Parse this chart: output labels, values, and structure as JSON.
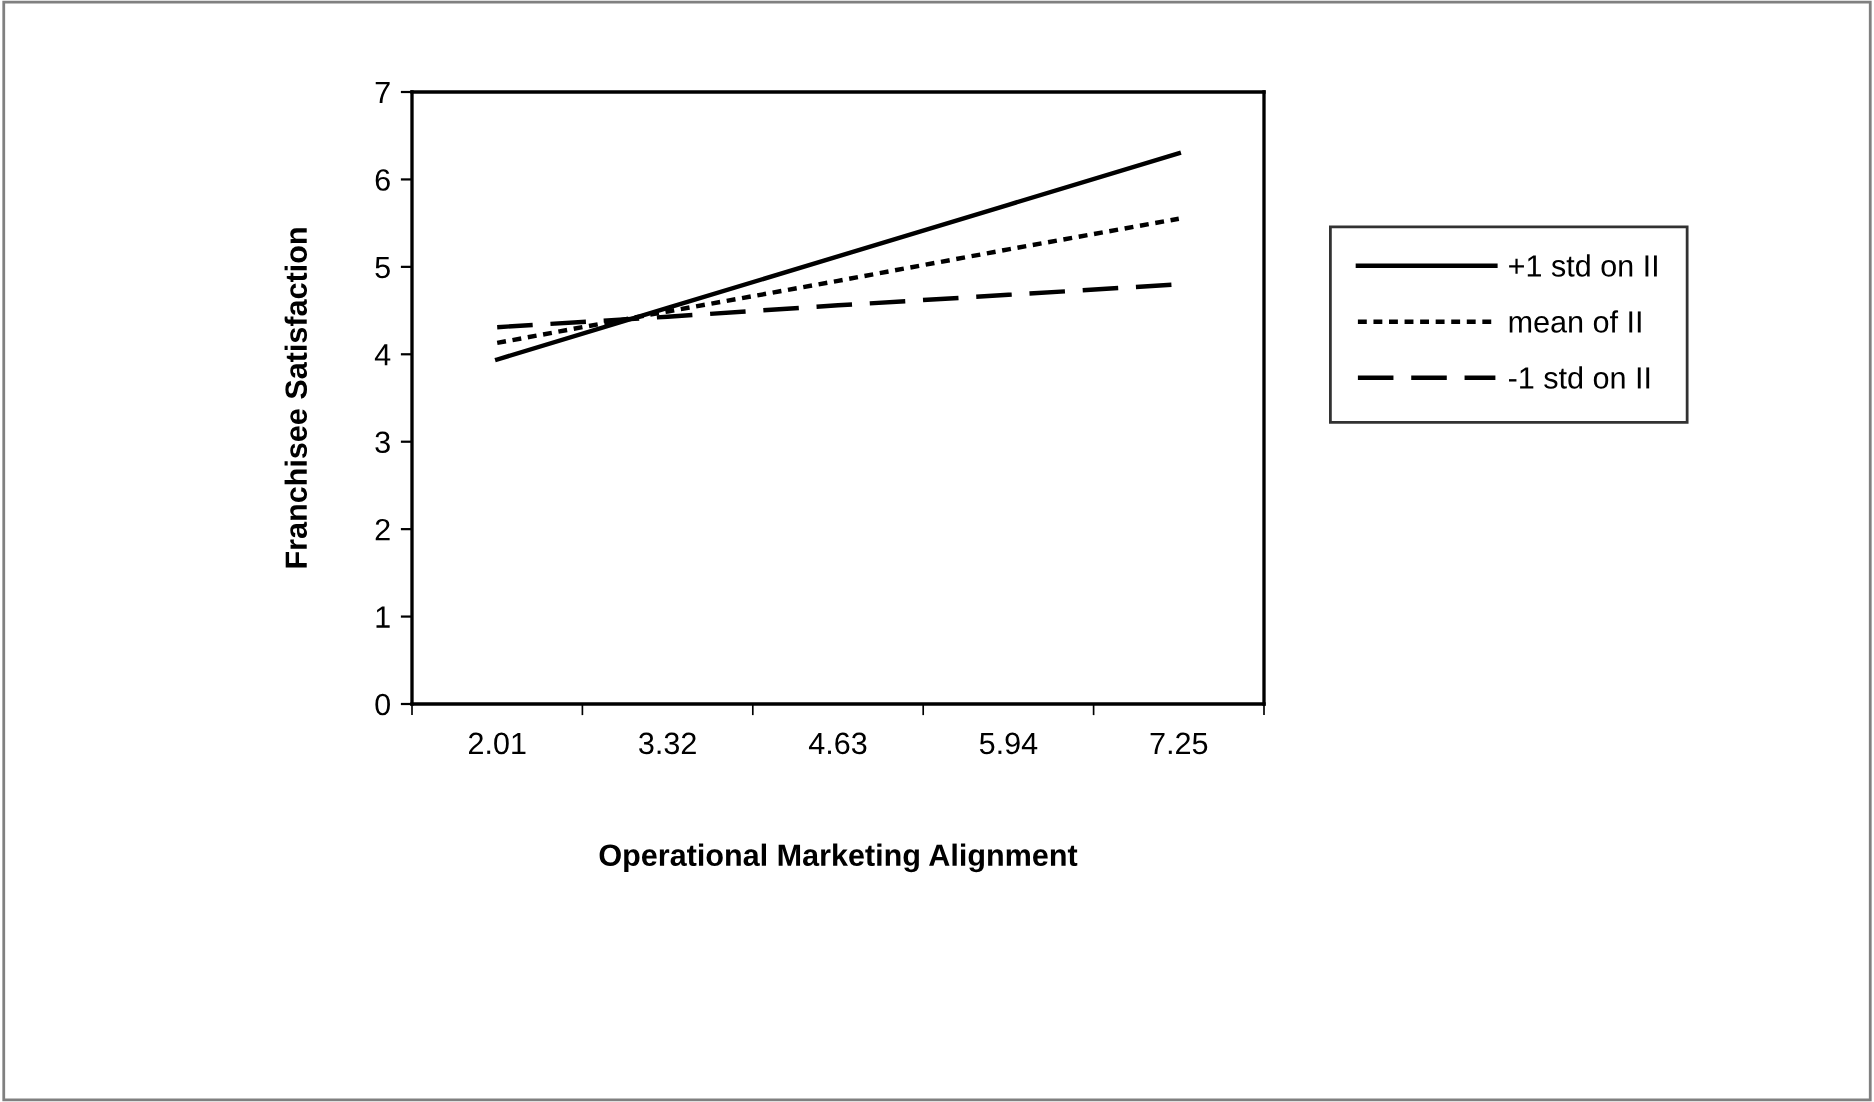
{
  "chart_data": {
    "type": "line",
    "xlabel": "Operational Marketing Alignment",
    "ylabel": "Franchisee Satisfaction",
    "categories": [
      "2.01",
      "3.32",
      "4.63",
      "5.94",
      "7.25"
    ],
    "series": [
      {
        "name": "+1 std on II",
        "color": "#000000",
        "line_style": "solid",
        "values": [
          3.94,
          4.53,
          5.12,
          5.71,
          6.3
        ]
      },
      {
        "name": "mean of II",
        "color": "#000000",
        "line_style": "dotted",
        "values": [
          4.13,
          4.49,
          4.84,
          5.2,
          5.55
        ]
      },
      {
        "name": "-1 std on II",
        "color": "#000000",
        "line_style": "dashed",
        "values": [
          4.31,
          4.43,
          4.56,
          4.68,
          4.8
        ]
      }
    ],
    "ylim": [
      0,
      7
    ],
    "yticks": [
      0,
      1,
      2,
      3,
      4,
      5,
      6,
      7
    ],
    "grid": false,
    "legend": "right",
    "marker": "none"
  }
}
